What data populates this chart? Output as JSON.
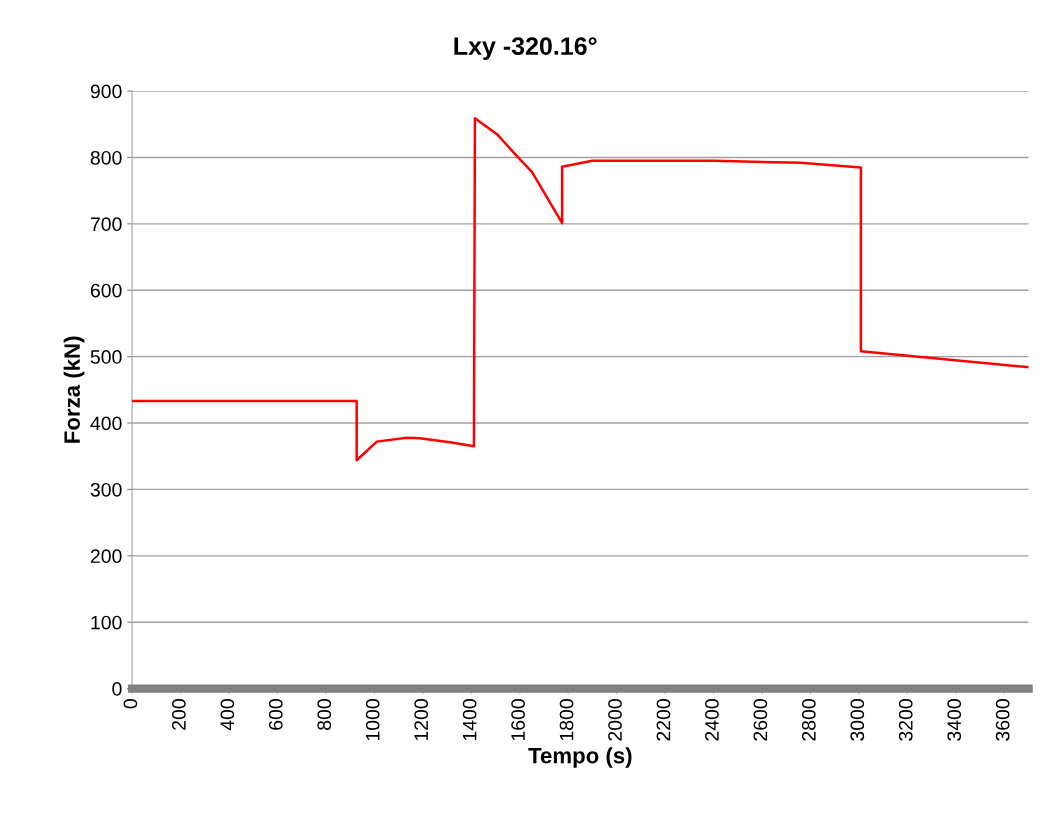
{
  "chart_data": {
    "type": "line",
    "title": "Lxy -320.16°",
    "xlabel": "Tempo (s)",
    "ylabel": "Forza (kN)",
    "series": [
      {
        "color": "#ff0000",
        "x": [
          0,
          927,
          927,
          1010,
          1134,
          1187,
          1312,
          1411,
          1415,
          1506,
          1601,
          1651,
          1775,
          1775,
          1899,
          2400,
          2760,
          3008,
          3008,
          3700
        ],
        "values": [
          433,
          433,
          344,
          372,
          378,
          377,
          371,
          365,
          859,
          835,
          797,
          778,
          701,
          786,
          795,
          795,
          792,
          785,
          508,
          484
        ]
      }
    ],
    "xlim": [
      0,
      3700
    ],
    "xticks": [
      0,
      200,
      400,
      600,
      800,
      1000,
      1200,
      1400,
      1600,
      1800,
      2000,
      2200,
      2400,
      2600,
      2800,
      3000,
      3200,
      3400,
      3600
    ],
    "ylim": [
      0,
      900
    ],
    "yticks": [
      0,
      100,
      200,
      300,
      400,
      500,
      600,
      700,
      800,
      900
    ],
    "grid": "y",
    "marker": "none",
    "line_style": "solid"
  }
}
